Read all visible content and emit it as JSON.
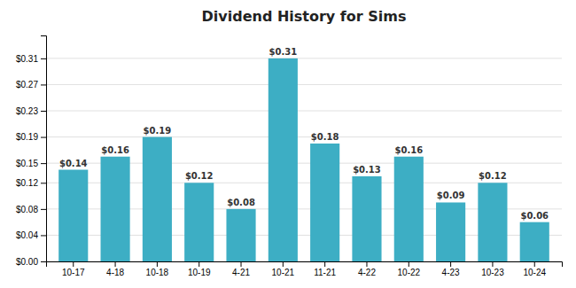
{
  "chart_data": {
    "type": "bar",
    "title": "Dividend History for Sims",
    "categories": [
      "10-17",
      "4-18",
      "10-18",
      "10-19",
      "4-21",
      "10-21",
      "11-21",
      "4-22",
      "10-22",
      "4-23",
      "10-23",
      "10-24"
    ],
    "values": [
      0.14,
      0.16,
      0.19,
      0.12,
      0.08,
      0.31,
      0.18,
      0.13,
      0.16,
      0.09,
      0.12,
      0.06
    ],
    "value_labels": [
      "$0.14",
      "$0.16",
      "$0.19",
      "$0.12",
      "$0.08",
      "$0.31",
      "$0.18",
      "$0.13",
      "$0.16",
      "$0.09",
      "$0.12",
      "$0.06"
    ],
    "data_labels": true,
    "color": "#3daec4",
    "ylim": [
      0,
      0.345
    ],
    "yticks": [
      {
        "value": 0.0,
        "label": "$0.00"
      },
      {
        "value": 0.04,
        "label": "$0.04"
      },
      {
        "value": 0.08,
        "label": "$0.08"
      },
      {
        "value": 0.12,
        "label": "$0.12"
      },
      {
        "value": 0.15,
        "label": "$0.15"
      },
      {
        "value": 0.19,
        "label": "$0.19"
      },
      {
        "value": 0.23,
        "label": "$0.23"
      },
      {
        "value": 0.27,
        "label": "$0.27"
      },
      {
        "value": 0.31,
        "label": "$0.31"
      }
    ],
    "grid": true
  }
}
